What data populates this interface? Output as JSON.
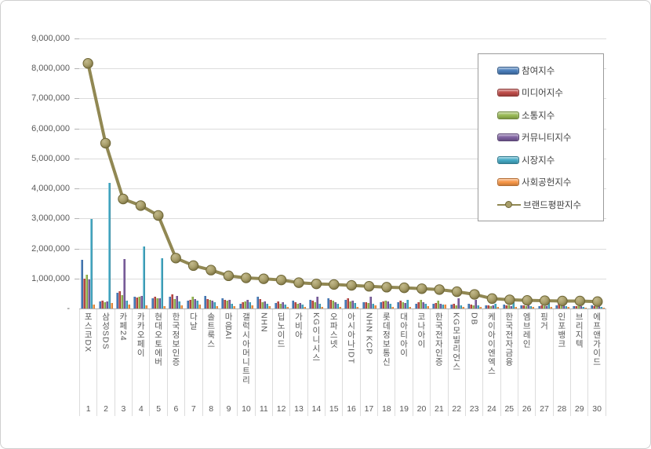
{
  "chart_data": {
    "type": "bar",
    "title": "",
    "xlabel": "",
    "ylabel": "",
    "ylim": [
      0,
      9000000
    ],
    "ytick_step": 1000000,
    "zero_label": "-",
    "grid": true,
    "legend_position": "inside-top-right",
    "categories": [
      "포스코DX",
      "삼성SDS",
      "카페24",
      "카카오페이",
      "현대오토에버",
      "한국정보인증",
      "다날",
      "솔트룩스",
      "마음AI",
      "갤럭시아머니트리",
      "NHN",
      "딥노이드",
      "가비아",
      "KG이니시스",
      "오파스넷",
      "아시아나IDT",
      "NHN KCP",
      "롯데정보통신",
      "대아티아이",
      "코나아이",
      "한국전자인증",
      "KG모빌리언스",
      "DB",
      "케이아이엔엑스",
      "한국전자금융",
      "엠브레인",
      "핑거",
      "인포뱅크",
      "브리지텍",
      "에프앤가이드"
    ],
    "ranks": [
      1,
      2,
      3,
      4,
      5,
      6,
      7,
      8,
      9,
      10,
      11,
      12,
      13,
      14,
      15,
      16,
      17,
      18,
      19,
      20,
      21,
      22,
      23,
      24,
      25,
      26,
      27,
      28,
      29,
      30
    ],
    "series": [
      {
        "name": "참여지수",
        "type": "bar",
        "color": "#4a7ebb",
        "values": [
          1610000,
          230000,
          530000,
          400000,
          350000,
          400000,
          270000,
          420000,
          350000,
          150000,
          400000,
          180000,
          270000,
          300000,
          330000,
          290000,
          200000,
          200000,
          220000,
          150000,
          150000,
          120000,
          150000,
          100000,
          120000,
          100000,
          90000,
          100000,
          80000,
          100000
        ]
      },
      {
        "name": "미디어지수",
        "type": "bar",
        "color": "#be4b48",
        "values": [
          990000,
          260000,
          580000,
          370000,
          380000,
          470000,
          300000,
          320000,
          300000,
          200000,
          320000,
          240000,
          220000,
          250000,
          300000,
          330000,
          200000,
          240000,
          250000,
          200000,
          180000,
          150000,
          130000,
          110000,
          110000,
          110000,
          100000,
          150000,
          90000,
          80000
        ]
      },
      {
        "name": "소통지수",
        "type": "bar",
        "color": "#98b954",
        "values": [
          1120000,
          220000,
          450000,
          400000,
          330000,
          320000,
          400000,
          280000,
          270000,
          230000,
          200000,
          160000,
          150000,
          200000,
          260000,
          240000,
          180000,
          260000,
          200000,
          300000,
          270000,
          100000,
          100000,
          90000,
          100000,
          90000,
          80000,
          90000,
          70000,
          60000
        ]
      },
      {
        "name": "커뮤니티지수",
        "type": "bar",
        "color": "#7d60a0",
        "values": [
          970000,
          230000,
          1650000,
          420000,
          350000,
          420000,
          320000,
          250000,
          300000,
          280000,
          230000,
          210000,
          180000,
          400000,
          210000,
          270000,
          400000,
          230000,
          180000,
          200000,
          150000,
          340000,
          300000,
          100000,
          90000,
          260000,
          90000,
          100000,
          80000,
          70000
        ]
      },
      {
        "name": "시장지수",
        "type": "bar",
        "color": "#45aac5",
        "values": [
          2970000,
          4180000,
          250000,
          2080000,
          1680000,
          230000,
          250000,
          200000,
          170000,
          220000,
          150000,
          140000,
          120000,
          150000,
          170000,
          180000,
          150000,
          170000,
          300000,
          150000,
          120000,
          100000,
          100000,
          170000,
          200000,
          80000,
          270000,
          80000,
          60000,
          50000
        ]
      },
      {
        "name": "사회공헌지수",
        "type": "bar",
        "color": "#f79646",
        "values": [
          140000,
          190000,
          140000,
          100000,
          90000,
          100000,
          120000,
          80000,
          70000,
          100000,
          80000,
          50000,
          60000,
          50000,
          60000,
          50000,
          100000,
          60000,
          60000,
          70000,
          130000,
          50000,
          50000,
          40000,
          40000,
          40000,
          40000,
          40000,
          30000,
          30000
        ]
      },
      {
        "name": "브랜드평판지수",
        "type": "line",
        "color": "#918853",
        "marker_fill": "#a89e6a",
        "marker_edge": "#6e6636",
        "values": [
          8170000,
          5510000,
          3650000,
          3430000,
          3100000,
          1680000,
          1430000,
          1280000,
          1090000,
          1020000,
          990000,
          950000,
          860000,
          820000,
          800000,
          770000,
          740000,
          710000,
          690000,
          660000,
          630000,
          560000,
          470000,
          330000,
          290000,
          270000,
          260000,
          250000,
          250000,
          230000
        ]
      }
    ]
  }
}
